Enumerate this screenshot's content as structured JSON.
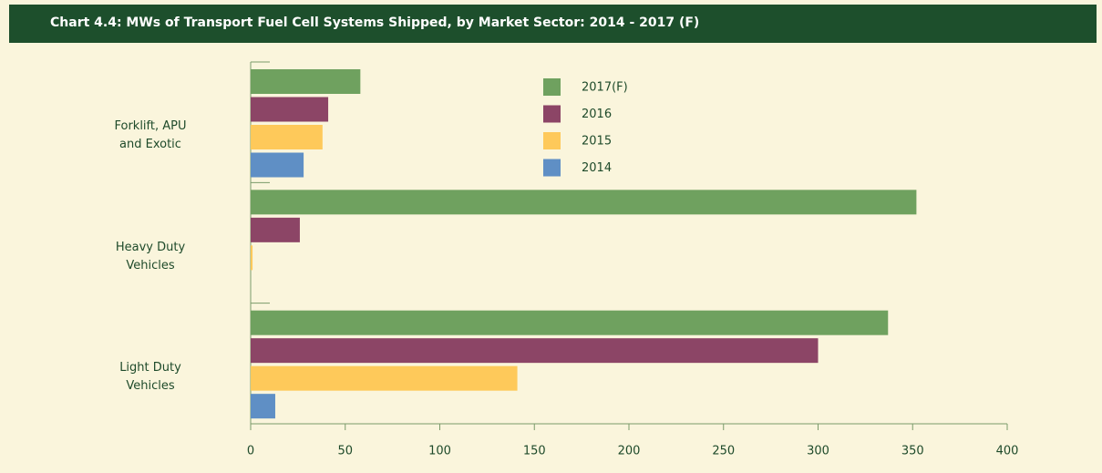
{
  "chart_data": {
    "type": "bar",
    "orientation": "horizontal",
    "title": "Chart 4.4: MWs of Transport Fuel Cell Systems Shipped, by Market Sector: 2014 - 2017 (F)",
    "categories": [
      "Forklift, APU and Exotic",
      "Heavy Duty Vehicles",
      "Light Duty Vehicles"
    ],
    "series": [
      {
        "name": "2017(F)",
        "color": "#6fa15f",
        "values": [
          58,
          352,
          337
        ]
      },
      {
        "name": "2016",
        "color": "#8c4566",
        "values": [
          41,
          26,
          300
        ]
      },
      {
        "name": "2015",
        "color": "#fec95a",
        "values": [
          38,
          1,
          141
        ]
      },
      {
        "name": "2014",
        "color": "#5f8fc5",
        "values": [
          28,
          0,
          13
        ]
      }
    ],
    "xlim": [
      0,
      400
    ],
    "xticks": [
      0,
      50,
      100,
      150,
      200,
      250,
      300,
      350,
      400
    ]
  }
}
